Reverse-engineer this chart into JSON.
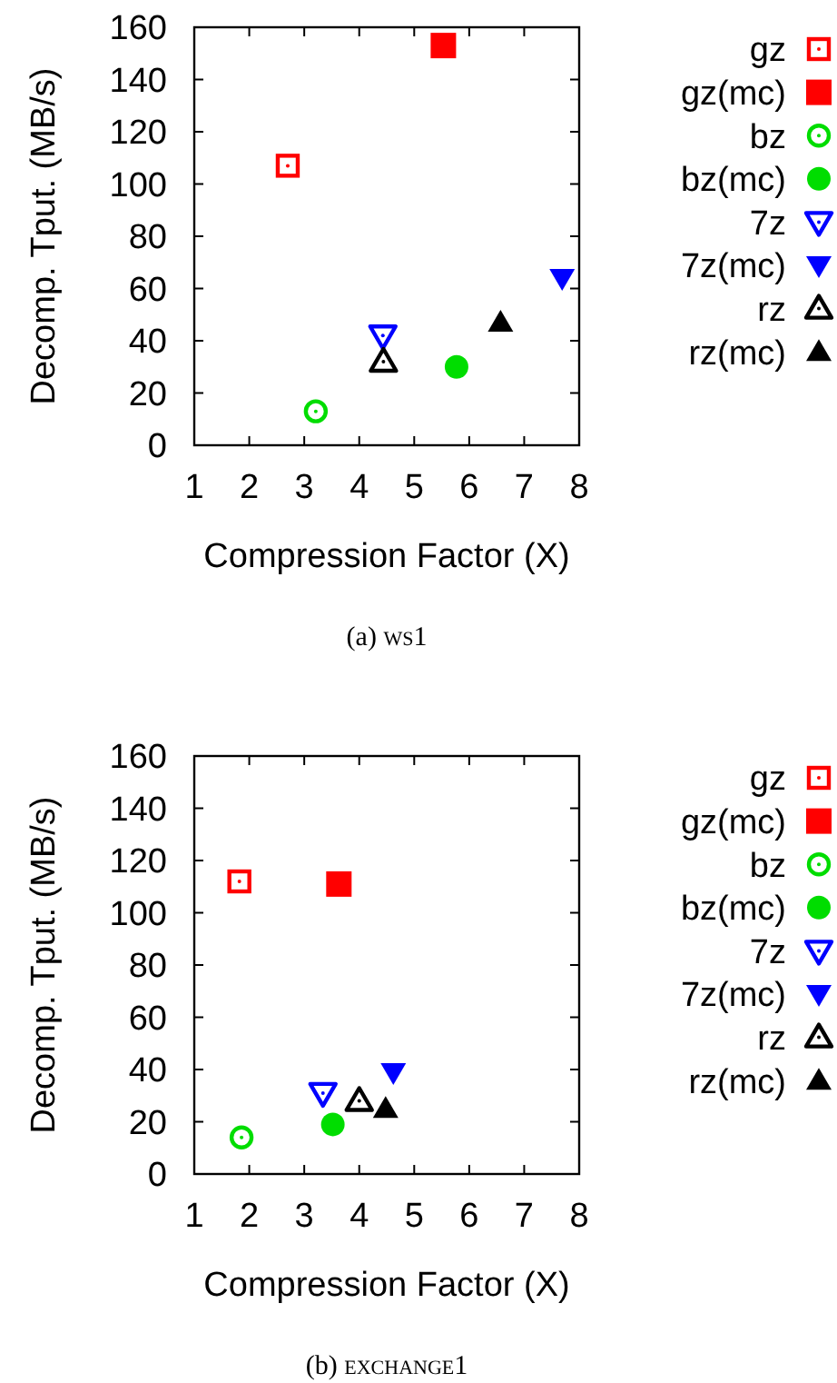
{
  "chart_data": [
    {
      "type": "scatter",
      "xlabel": "Compression Factor (X)",
      "ylabel": "Decomp. Tput. (MB/s)",
      "annotations": [
        "(a) ws1"
      ],
      "xlim": [
        1,
        8
      ],
      "xticks": [
        1,
        2,
        3,
        4,
        5,
        6,
        7,
        8
      ],
      "ylim": [
        0,
        160
      ],
      "yticks": [
        0,
        20,
        40,
        60,
        80,
        100,
        120,
        140,
        160
      ],
      "grid": false,
      "legend": "right",
      "series": [
        {
          "name": "gz",
          "color": "#ff0000",
          "marker": "square",
          "x": [
            2.7
          ],
          "values": [
            107
          ]
        },
        {
          "name": "gz(mc)",
          "color": "#ff0000",
          "marker": "square",
          "x": [
            5.53
          ],
          "values": [
            153
          ]
        },
        {
          "name": "bz",
          "color": "#00dd00",
          "marker": "circle",
          "x": [
            3.21
          ],
          "values": [
            13
          ]
        },
        {
          "name": "bz(mc)",
          "color": "#00dd00",
          "marker": "circle",
          "x": [
            5.77
          ],
          "values": [
            30
          ]
        },
        {
          "name": "7z",
          "color": "#0000ff",
          "marker": "triangle-down",
          "x": [
            4.43
          ],
          "values": [
            42
          ]
        },
        {
          "name": "7z(mc)",
          "color": "#0000ff",
          "marker": "triangle-down",
          "x": [
            7.69
          ],
          "values": [
            64
          ]
        },
        {
          "name": "rz",
          "color": "#000000",
          "marker": "triangle",
          "x": [
            4.44
          ],
          "values": [
            32
          ]
        },
        {
          "name": "rz(mc)",
          "color": "#000000",
          "marker": "triangle",
          "x": [
            6.57
          ],
          "values": [
            47
          ]
        }
      ]
    },
    {
      "type": "scatter",
      "xlabel": "Compression Factor (X)",
      "ylabel": "Decomp. Tput. (MB/s)",
      "annotations": [
        "(b) exchange1"
      ],
      "xlim": [
        1,
        8
      ],
      "xticks": [
        1,
        2,
        3,
        4,
        5,
        6,
        7,
        8
      ],
      "ylim": [
        0,
        160
      ],
      "yticks": [
        0,
        20,
        40,
        60,
        80,
        100,
        120,
        140,
        160
      ],
      "grid": false,
      "legend": "right",
      "series": [
        {
          "name": "gz",
          "color": "#ff0000",
          "marker": "square",
          "x": [
            1.82
          ],
          "values": [
            112
          ]
        },
        {
          "name": "gz(mc)",
          "color": "#ff0000",
          "marker": "square",
          "x": [
            3.63
          ],
          "values": [
            111
          ]
        },
        {
          "name": "bz",
          "color": "#00dd00",
          "marker": "circle",
          "x": [
            1.86
          ],
          "values": [
            14
          ]
        },
        {
          "name": "bz(mc)",
          "color": "#00dd00",
          "marker": "circle",
          "x": [
            3.52
          ],
          "values": [
            19
          ]
        },
        {
          "name": "7z",
          "color": "#0000ff",
          "marker": "triangle-down",
          "x": [
            3.34
          ],
          "values": [
            31
          ]
        },
        {
          "name": "7z(mc)",
          "color": "#0000ff",
          "marker": "triangle-down",
          "x": [
            4.62
          ],
          "values": [
            39
          ]
        },
        {
          "name": "rz",
          "color": "#000000",
          "marker": "triangle",
          "x": [
            4.0
          ],
          "values": [
            28
          ]
        },
        {
          "name": "rz(mc)",
          "color": "#000000",
          "marker": "triangle",
          "x": [
            4.48
          ],
          "values": [
            25
          ]
        }
      ]
    }
  ]
}
